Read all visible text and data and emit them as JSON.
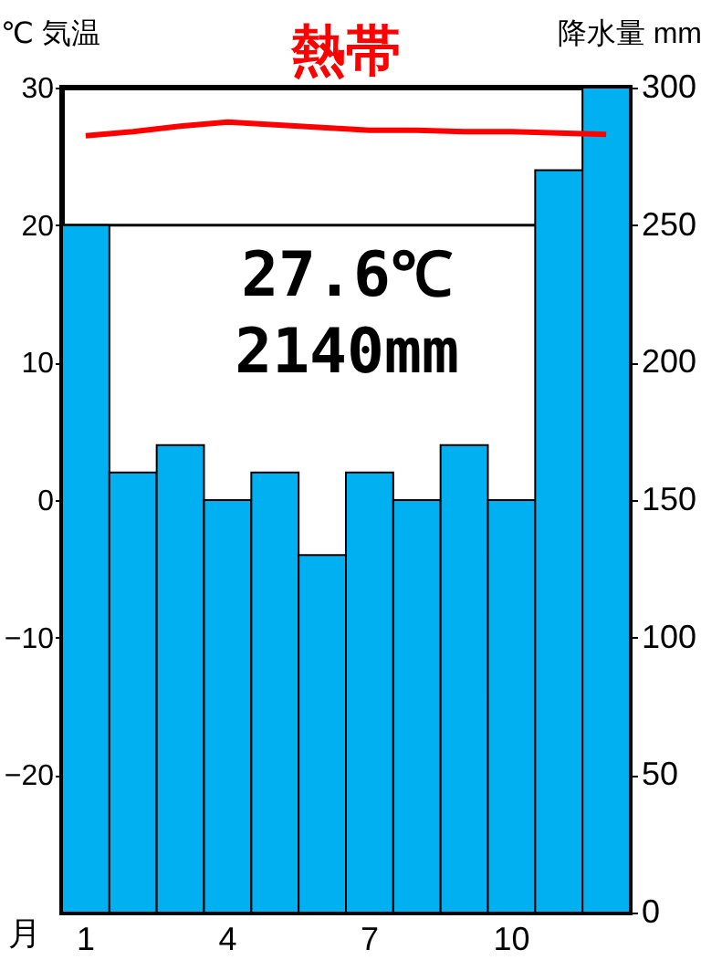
{
  "chart_data": {
    "type": "bar",
    "title": "熱帯",
    "xlabel": "月",
    "ylabel": "℃ 気温",
    "y2label": "降水量 mm",
    "categories": [
      "1",
      null,
      null,
      "4",
      null,
      null,
      "7",
      null,
      null,
      "10",
      null,
      null
    ],
    "series": [
      {
        "axis": "y2",
        "color": "#00b0f0",
        "values": [
          250,
          160,
          170,
          150,
          160,
          130,
          160,
          150,
          170,
          150,
          270,
          300
        ]
      },
      {
        "type": "line",
        "axis": "y",
        "color": "#ff0000",
        "values": [
          26.5,
          26.8,
          27.2,
          27.5,
          27.3,
          27.1,
          26.9,
          26.9,
          26.8,
          26.8,
          26.7,
          26.6
        ]
      }
    ],
    "ylim": [
      -30,
      30
    ],
    "yticks": [
      -20,
      -10,
      0,
      10,
      20,
      30
    ],
    "y2lim": [
      0,
      300
    ],
    "y2ticks": [
      0,
      50,
      100,
      150,
      200,
      250,
      300
    ],
    "ref_lines": [
      {
        "axis": "y",
        "value": 20,
        "color": "#000000"
      }
    ],
    "annotations": [
      "27.6℃",
      "2140mm"
    ],
    "grid": false,
    "marker": "none",
    "line_style": "solid"
  }
}
